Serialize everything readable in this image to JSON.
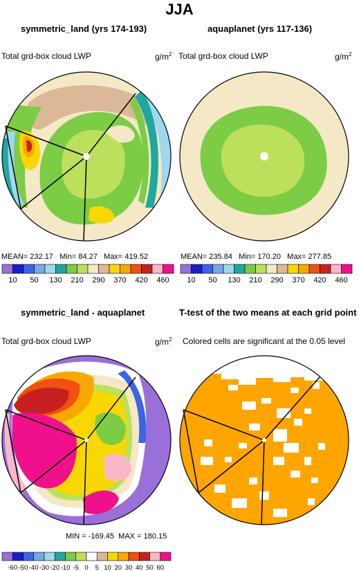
{
  "title": "JJA",
  "units_label": "g/m",
  "units_superscript": "2",
  "chart_data": [
    {
      "type": "heatmap",
      "projection": "polar-stereographic",
      "title": "symmetric_land (yrs 174-193)",
      "left_label": "Total grd-box cloud LWP",
      "stats": {
        "mean_label": "MEAN=",
        "mean": "232.17",
        "min_label": "Min=",
        "min": "84.27",
        "max_label": "Max=",
        "max": "419.52"
      },
      "colorbar": {
        "levels": [
          "10",
          "50",
          "130",
          "210",
          "290",
          "370",
          "420",
          "460"
        ],
        "colors": [
          "#9b6fd9",
          "#1d1dc8",
          "#3c64e6",
          "#78a8e8",
          "#9fd8ec",
          "#1fa8a0",
          "#7ccc46",
          "#bde05c",
          "#f4e8c6",
          "#dab898",
          "#f8d800",
          "#f8a800",
          "#f05010",
          "#c82020",
          "#f8b8c8",
          "#f0108c"
        ]
      }
    },
    {
      "type": "heatmap",
      "projection": "polar-stereographic",
      "title": "aquaplanet (yrs 117-136)",
      "left_label": "Total grd-box cloud LWP",
      "stats": {
        "mean_label": "MEAN=",
        "mean": "235.84",
        "min_label": "Min=",
        "min": "170.20",
        "max_label": "Max=",
        "max": "277.85"
      },
      "colorbar": {
        "levels": [
          "10",
          "50",
          "130",
          "210",
          "290",
          "370",
          "420",
          "460"
        ],
        "colors": [
          "#9b6fd9",
          "#1d1dc8",
          "#3c64e6",
          "#78a8e8",
          "#9fd8ec",
          "#1fa8a0",
          "#7ccc46",
          "#bde05c",
          "#f4e8c6",
          "#dab898",
          "#f8d800",
          "#f8a800",
          "#f05010",
          "#c82020",
          "#f8b8c8",
          "#f0108c"
        ]
      }
    },
    {
      "type": "heatmap",
      "projection": "polar-stereographic",
      "title": "symmetric_land - aquaplanet",
      "left_label": "Total grd-box cloud LWP",
      "stats": {
        "min_label": "MIN =",
        "min": "-169.45",
        "max_label": "MAX =",
        "max": "180.15"
      },
      "colorbar": {
        "levels": [
          "-60",
          "-50",
          "-40",
          "-30",
          "-20",
          "-10",
          "-5",
          "0",
          "5",
          "10",
          "20",
          "30",
          "40",
          "50",
          "60"
        ],
        "colors": [
          "#9b6fd9",
          "#1d1dc8",
          "#3c64e6",
          "#78a8e8",
          "#9fd8ec",
          "#1fa8a0",
          "#7ccc46",
          "#bde05c",
          "#ffffff",
          "#dab898",
          "#f8d800",
          "#f8a800",
          "#f05010",
          "#c82020",
          "#f8b8c8",
          "#f0108c"
        ]
      }
    },
    {
      "type": "heatmap",
      "projection": "polar-stereographic",
      "title": "T-test of the two means at each grid point",
      "subtitle": "Colored cells are significant at the 0.05 level",
      "significant_color": "#ffa500"
    }
  ]
}
